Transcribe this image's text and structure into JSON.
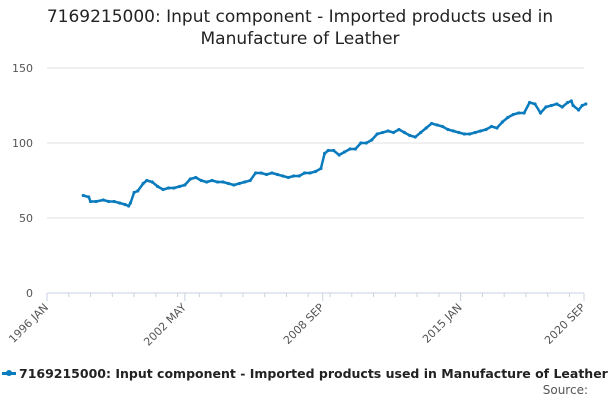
{
  "title_line1": "7169215000: Input component - Imported products used in",
  "title_line2": "Manufacture of Leather",
  "source_label": "Source:",
  "colors": {
    "series": "#0a7bbd",
    "grid": "#e0e0e0",
    "axis": "#c8d2e0",
    "tick_text": "#555555"
  },
  "chart_data": {
    "type": "line",
    "title": "7169215000: Input component - Imported products used in Manufacture of Leather",
    "xlabel": "",
    "ylabel": "",
    "x_range": [
      "1996-01",
      "2020-09"
    ],
    "ylim": [
      0,
      150
    ],
    "y_ticks": [
      0,
      50,
      100,
      150
    ],
    "x_ticks": [
      {
        "date": "1996-01",
        "label": "1996 JAN"
      },
      {
        "date": "2002-05",
        "label": "2002 MAY"
      },
      {
        "date": "2008-09",
        "label": "2008 SEP"
      },
      {
        "date": "2015-01",
        "label": "2015 JAN"
      },
      {
        "date": "2020-09",
        "label": "2020 SEP"
      }
    ],
    "grid": true,
    "legend_position": "bottom",
    "series": [
      {
        "name": "7169215000: Input component - Imported products used in Manufacture of Leather",
        "points": [
          [
            "1997-09",
            65
          ],
          [
            "1997-12",
            64
          ],
          [
            "1998-01",
            61
          ],
          [
            "1998-04",
            61
          ],
          [
            "1998-08",
            62
          ],
          [
            "1998-11",
            61
          ],
          [
            "1999-02",
            61
          ],
          [
            "1999-05",
            60
          ],
          [
            "1999-08",
            59
          ],
          [
            "1999-10",
            58
          ],
          [
            "1999-11",
            60
          ],
          [
            "2000-01",
            67
          ],
          [
            "2000-03",
            68
          ],
          [
            "2000-06",
            73
          ],
          [
            "2000-08",
            75
          ],
          [
            "2000-11",
            74
          ],
          [
            "2001-02",
            71
          ],
          [
            "2001-05",
            69
          ],
          [
            "2001-08",
            70
          ],
          [
            "2001-11",
            70
          ],
          [
            "2002-02",
            71
          ],
          [
            "2002-05",
            72
          ],
          [
            "2002-08",
            76
          ],
          [
            "2002-11",
            77
          ],
          [
            "2003-02",
            75
          ],
          [
            "2003-05",
            74
          ],
          [
            "2003-08",
            75
          ],
          [
            "2003-11",
            74
          ],
          [
            "2004-02",
            74
          ],
          [
            "2004-05",
            73
          ],
          [
            "2004-08",
            72
          ],
          [
            "2004-11",
            73
          ],
          [
            "2005-02",
            74
          ],
          [
            "2005-05",
            75
          ],
          [
            "2005-08",
            80
          ],
          [
            "2005-11",
            80
          ],
          [
            "2006-02",
            79
          ],
          [
            "2006-05",
            80
          ],
          [
            "2006-08",
            79
          ],
          [
            "2006-11",
            78
          ],
          [
            "2007-02",
            77
          ],
          [
            "2007-05",
            78
          ],
          [
            "2007-08",
            78
          ],
          [
            "2007-11",
            80
          ],
          [
            "2008-02",
            80
          ],
          [
            "2008-05",
            81
          ],
          [
            "2008-08",
            83
          ],
          [
            "2008-10",
            93
          ],
          [
            "2008-12",
            95
          ],
          [
            "2009-03",
            95
          ],
          [
            "2009-06",
            92
          ],
          [
            "2009-09",
            94
          ],
          [
            "2009-12",
            96
          ],
          [
            "2010-03",
            96
          ],
          [
            "2010-06",
            100
          ],
          [
            "2010-09",
            100
          ],
          [
            "2010-12",
            102
          ],
          [
            "2011-03",
            106
          ],
          [
            "2011-06",
            107
          ],
          [
            "2011-09",
            108
          ],
          [
            "2011-12",
            107
          ],
          [
            "2012-03",
            109
          ],
          [
            "2012-06",
            107
          ],
          [
            "2012-09",
            105
          ],
          [
            "2012-12",
            104
          ],
          [
            "2013-03",
            107
          ],
          [
            "2013-06",
            110
          ],
          [
            "2013-09",
            113
          ],
          [
            "2013-12",
            112
          ],
          [
            "2014-03",
            111
          ],
          [
            "2014-06",
            109
          ],
          [
            "2014-09",
            108
          ],
          [
            "2014-12",
            107
          ],
          [
            "2015-03",
            106
          ],
          [
            "2015-06",
            106
          ],
          [
            "2015-09",
            107
          ],
          [
            "2015-12",
            108
          ],
          [
            "2016-03",
            109
          ],
          [
            "2016-06",
            111
          ],
          [
            "2016-09",
            110
          ],
          [
            "2016-12",
            114
          ],
          [
            "2017-03",
            117
          ],
          [
            "2017-06",
            119
          ],
          [
            "2017-09",
            120
          ],
          [
            "2017-12",
            120
          ],
          [
            "2018-03",
            127
          ],
          [
            "2018-06",
            126
          ],
          [
            "2018-09",
            120
          ],
          [
            "2018-12",
            124
          ],
          [
            "2019-03",
            125
          ],
          [
            "2019-06",
            126
          ],
          [
            "2019-09",
            124
          ],
          [
            "2019-12",
            127
          ],
          [
            "2020-02",
            128
          ],
          [
            "2020-03",
            125
          ],
          [
            "2020-06",
            122
          ],
          [
            "2020-08",
            125
          ],
          [
            "2020-10",
            126
          ]
        ]
      }
    ]
  }
}
